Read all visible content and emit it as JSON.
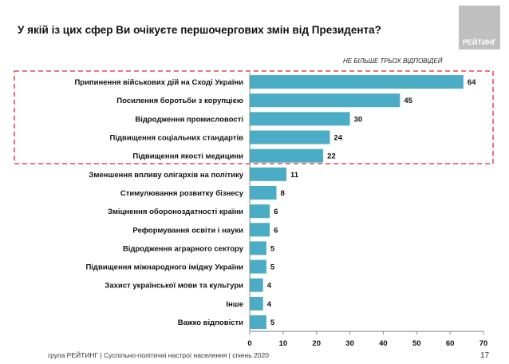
{
  "header": {
    "title": "У якій із цих сфер Ви очікуєте першочергових змін від Президента?",
    "logo": "РЕЙТИНГ",
    "note": "НЕ БІЛЬШЕ ТРЬОХ ВІДПОВІДЕЙ"
  },
  "footer": {
    "text": "група РЕЙТИНГ | Суспільно-політичні настрої населення  | січень  2020",
    "page": "17"
  },
  "chart_data": {
    "type": "bar",
    "orientation": "horizontal",
    "categories": [
      "Припинення військових дій на Сході України",
      "Посилення боротьби з корупцією",
      "Відродження промисловості",
      "Підвищення соціальних стандартів",
      "Підвищення якості медицини",
      "Зменшення впливу олігархів на політику",
      "Стимулювання розвитку бізнесу",
      "Зміцнення обороноздатності країни",
      "Реформування освіти і науки",
      "Відродження аграрного сектору",
      "Підвищення міжнародного іміджу України",
      "Захист української мови та культури",
      "Інше",
      "Важко відповісти"
    ],
    "values": [
      64,
      45,
      30,
      24,
      22,
      11,
      8,
      6,
      6,
      5,
      5,
      4,
      4,
      5
    ],
    "xlim": [
      0,
      70
    ],
    "xticks": [
      0,
      10,
      20,
      30,
      40,
      50,
      60,
      70
    ],
    "bar_color": "#4bacc6",
    "highlight_color": "#e0242b",
    "highlighted_top": 5
  }
}
